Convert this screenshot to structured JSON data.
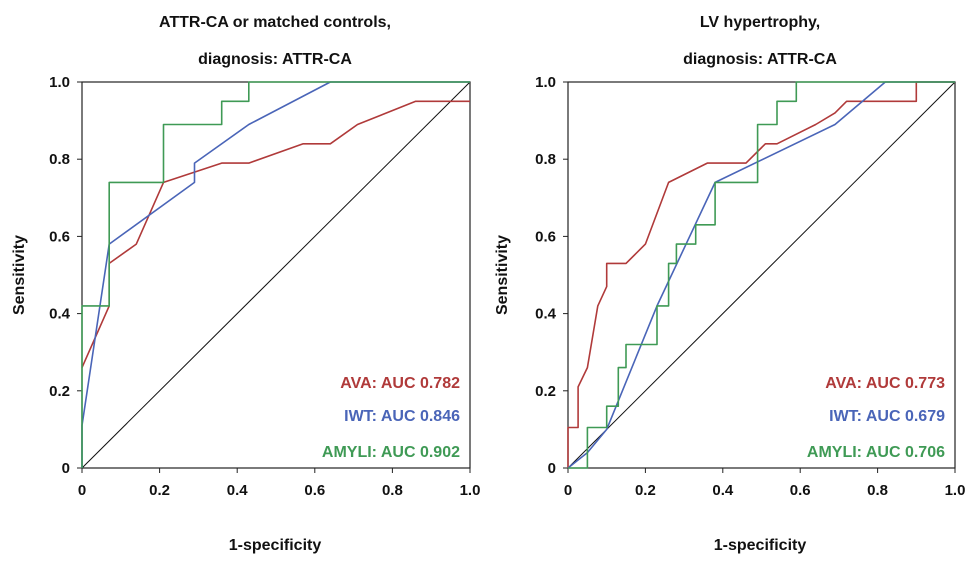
{
  "chart_data": [
    {
      "type": "line",
      "title_line1": "ATTR-CA or matched controls,",
      "title_line2": "diagnosis: ATTR-CA",
      "xlabel": "1-specificity",
      "ylabel": "Sensitivity",
      "xlim": [
        0,
        1
      ],
      "ylim": [
        0,
        1
      ],
      "xticks": [
        0,
        0.2,
        0.4,
        0.6,
        0.8,
        1.0
      ],
      "xtick_labels": [
        "0",
        "0.2",
        "0.4",
        "0.6",
        "0.8",
        "1.0"
      ],
      "yticks": [
        0,
        0.2,
        0.4,
        0.6,
        0.8,
        1.0
      ],
      "ytick_labels": [
        "0",
        "0.2",
        "0.4",
        "0.6",
        "0.8",
        "1.0"
      ],
      "grid": false,
      "diagonal_reference": true,
      "annotations": [
        "AVA: AUC 0.782",
        "IWT: AUC 0.846",
        "AMYLI: AUC 0.902"
      ],
      "series": [
        {
          "color": "#b03a3a",
          "points": [
            [
              0,
              0.26
            ],
            [
              0.07,
              0.42
            ],
            [
              0.07,
              0.53
            ],
            [
              0.14,
              0.58
            ],
            [
              0.21,
              0.74
            ],
            [
              0.36,
              0.79
            ],
            [
              0.43,
              0.79
            ],
            [
              0.57,
              0.84
            ],
            [
              0.64,
              0.84
            ],
            [
              0.71,
              0.89
            ],
            [
              0.86,
              0.95
            ],
            [
              1.0,
              0.95
            ]
          ]
        },
        {
          "color": "#4a65b8",
          "points": [
            [
              0,
              0
            ],
            [
              0,
              0.11
            ],
            [
              0.07,
              0.58
            ],
            [
              0.29,
              0.74
            ],
            [
              0.29,
              0.79
            ],
            [
              0.43,
              0.89
            ],
            [
              0.64,
              1.0
            ],
            [
              1.0,
              1.0
            ]
          ]
        },
        {
          "color": "#3f9a55",
          "points": [
            [
              0,
              0
            ],
            [
              0,
              0.42
            ],
            [
              0.07,
              0.42
            ],
            [
              0.07,
              0.74
            ],
            [
              0.21,
              0.74
            ],
            [
              0.21,
              0.89
            ],
            [
              0.36,
              0.89
            ],
            [
              0.36,
              0.95
            ],
            [
              0.43,
              0.95
            ],
            [
              0.43,
              1.0
            ],
            [
              1.0,
              1.0
            ]
          ]
        }
      ]
    },
    {
      "type": "line",
      "title_line1": "LV hypertrophy,",
      "title_line2": "diagnosis: ATTR-CA",
      "xlabel": "1-specificity",
      "ylabel": "Sensitivity",
      "xlim": [
        0,
        1
      ],
      "ylim": [
        0,
        1
      ],
      "xticks": [
        0,
        0.2,
        0.4,
        0.6,
        0.8,
        1.0
      ],
      "xtick_labels": [
        "0",
        "0.2",
        "0.4",
        "0.6",
        "0.8",
        "1.0"
      ],
      "yticks": [
        0,
        0.2,
        0.4,
        0.6,
        0.8,
        1.0
      ],
      "ytick_labels": [
        "0",
        "0.2",
        "0.4",
        "0.6",
        "0.8",
        "1.0"
      ],
      "grid": false,
      "diagonal_reference": true,
      "annotations": [
        "AVA: AUC 0.773",
        "IWT: AUC 0.679",
        "AMYLI: AUC 0.706"
      ],
      "series": [
        {
          "color": "#b03a3a",
          "points": [
            [
              0,
              0
            ],
            [
              0,
              0.105
            ],
            [
              0.026,
              0.105
            ],
            [
              0.026,
              0.21
            ],
            [
              0.05,
              0.26
            ],
            [
              0.077,
              0.42
            ],
            [
              0.1,
              0.47
            ],
            [
              0.1,
              0.53
            ],
            [
              0.13,
              0.53
            ],
            [
              0.15,
              0.53
            ],
            [
              0.2,
              0.58
            ],
            [
              0.26,
              0.74
            ],
            [
              0.36,
              0.79
            ],
            [
              0.46,
              0.79
            ],
            [
              0.51,
              0.84
            ],
            [
              0.54,
              0.84
            ],
            [
              0.64,
              0.89
            ],
            [
              0.69,
              0.92
            ],
            [
              0.72,
              0.95
            ],
            [
              0.82,
              0.95
            ],
            [
              0.9,
              0.95
            ],
            [
              0.9,
              1.0
            ],
            [
              1.0,
              1.0
            ]
          ]
        },
        {
          "color": "#4a65b8",
          "points": [
            [
              0,
              0
            ],
            [
              0.05,
              0.04
            ],
            [
              0.1,
              0.1
            ],
            [
              0.23,
              0.42
            ],
            [
              0.38,
              0.74
            ],
            [
              0.69,
              0.89
            ],
            [
              0.82,
              1.0
            ],
            [
              1.0,
              1.0
            ]
          ]
        },
        {
          "color": "#3f9a55",
          "points": [
            [
              0,
              0
            ],
            [
              0.05,
              0
            ],
            [
              0.05,
              0.105
            ],
            [
              0.1,
              0.105
            ],
            [
              0.1,
              0.16
            ],
            [
              0.13,
              0.16
            ],
            [
              0.13,
              0.26
            ],
            [
              0.15,
              0.26
            ],
            [
              0.15,
              0.32
            ],
            [
              0.23,
              0.32
            ],
            [
              0.23,
              0.42
            ],
            [
              0.26,
              0.42
            ],
            [
              0.26,
              0.53
            ],
            [
              0.28,
              0.53
            ],
            [
              0.28,
              0.58
            ],
            [
              0.33,
              0.58
            ],
            [
              0.33,
              0.63
            ],
            [
              0.38,
              0.63
            ],
            [
              0.38,
              0.74
            ],
            [
              0.49,
              0.74
            ],
            [
              0.49,
              0.89
            ],
            [
              0.54,
              0.89
            ],
            [
              0.54,
              0.95
            ],
            [
              0.59,
              0.95
            ],
            [
              0.59,
              1.0
            ],
            [
              1.0,
              1.0
            ]
          ]
        }
      ]
    }
  ]
}
